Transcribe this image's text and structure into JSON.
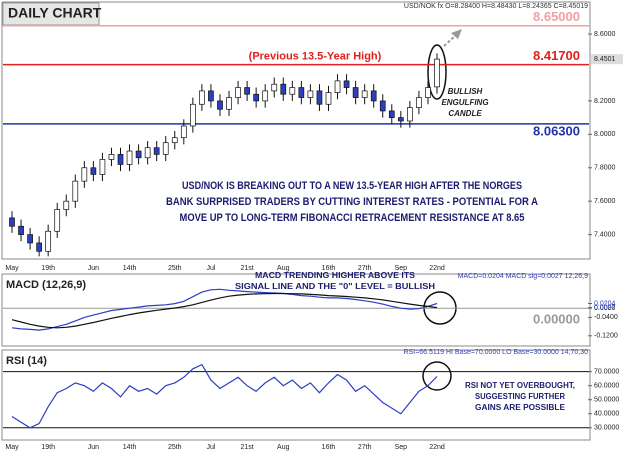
{
  "chart_data": [
    {
      "type": "candlestick",
      "title": "DAILY CHART",
      "header": "USD/NOK fx O=8.28400 H=8.48430 L=8.24365 C=8.45019",
      "categories": [
        "May",
        null,
        null,
        null,
        "19th",
        null,
        null,
        null,
        null,
        "Jun",
        null,
        null,
        null,
        "14th",
        null,
        null,
        null,
        null,
        "25th",
        null,
        null,
        null,
        "Jul",
        null,
        null,
        null,
        "21st",
        null,
        null,
        null,
        "Aug",
        null,
        null,
        null,
        null,
        "16th",
        null,
        null,
        null,
        "27th",
        null,
        null,
        null,
        "Sep",
        null,
        null,
        null,
        "22nd"
      ],
      "open": [
        7.5,
        7.45,
        7.4,
        7.35,
        7.3,
        7.42,
        7.55,
        7.6,
        7.72,
        7.8,
        7.76,
        7.85,
        7.88,
        7.82,
        7.9,
        7.86,
        7.92,
        7.88,
        7.95,
        7.98,
        8.05,
        8.18,
        8.26,
        8.2,
        8.15,
        8.22,
        8.28,
        8.24,
        8.2,
        8.26,
        8.3,
        8.24,
        8.28,
        8.22,
        8.26,
        8.18,
        8.25,
        8.32,
        8.28,
        8.22,
        8.26,
        8.2,
        8.14,
        8.1,
        8.08,
        8.16,
        8.22,
        8.284
      ],
      "high": [
        7.54,
        7.49,
        7.44,
        7.39,
        7.46,
        7.59,
        7.64,
        7.76,
        7.84,
        7.84,
        7.89,
        7.92,
        7.92,
        7.94,
        7.94,
        7.96,
        7.96,
        7.99,
        8.02,
        8.09,
        8.22,
        8.3,
        8.3,
        8.24,
        8.26,
        8.32,
        8.32,
        8.28,
        8.3,
        8.34,
        8.34,
        8.32,
        8.32,
        8.3,
        8.3,
        8.29,
        8.36,
        8.36,
        8.32,
        8.3,
        8.3,
        8.24,
        8.18,
        8.14,
        8.2,
        8.26,
        8.32,
        8.4843
      ],
      "low": [
        7.41,
        7.36,
        7.31,
        7.27,
        7.27,
        7.38,
        7.51,
        7.56,
        7.68,
        7.72,
        7.72,
        7.81,
        7.78,
        7.78,
        7.82,
        7.82,
        7.84,
        7.84,
        7.91,
        7.94,
        8.01,
        8.14,
        8.16,
        8.11,
        8.11,
        8.18,
        8.2,
        8.16,
        8.16,
        8.22,
        8.2,
        8.2,
        8.18,
        8.18,
        8.14,
        8.14,
        8.21,
        8.24,
        8.18,
        8.18,
        8.16,
        8.1,
        8.06,
        8.04,
        8.04,
        8.12,
        8.18,
        8.24365
      ],
      "close": [
        7.45,
        7.4,
        7.35,
        7.3,
        7.42,
        7.55,
        7.6,
        7.72,
        7.8,
        7.76,
        7.85,
        7.88,
        7.82,
        7.9,
        7.86,
        7.92,
        7.88,
        7.95,
        7.98,
        8.05,
        8.18,
        8.26,
        8.2,
        8.15,
        8.22,
        8.28,
        8.24,
        8.2,
        8.26,
        8.3,
        8.24,
        8.28,
        8.22,
        8.26,
        8.18,
        8.25,
        8.32,
        8.28,
        8.22,
        8.26,
        8.2,
        8.14,
        8.1,
        8.08,
        8.16,
        8.22,
        8.28,
        8.45019
      ],
      "up_color": "#ffffff",
      "down_color": "#2b3fc0",
      "ylim": [
        7.26,
        8.78
      ],
      "yticks": [
        {
          "value": 7.4,
          "label": "7.4000"
        },
        {
          "value": 7.6,
          "label": "7.6000"
        },
        {
          "value": 7.8,
          "label": "7.8000"
        },
        {
          "value": 8.0,
          "label": "8.0000"
        },
        {
          "value": 8.2,
          "label": "8.2000"
        },
        {
          "value": 8.6,
          "label": "8.6000"
        }
      ],
      "last_price": 8.4501,
      "levels": [
        {
          "value": 8.65,
          "label": "8.65000",
          "color": "#f2a0a0"
        },
        {
          "value": 8.417,
          "label": "8.41700",
          "color": "#e0201c"
        },
        {
          "value": 8.063,
          "label": "8.06300",
          "color": "#2233aa"
        }
      ],
      "level_note": "(Previous 13.5-Year High)",
      "candle_note": [
        "BULLISH",
        "ENGULFING",
        "CANDLE"
      ],
      "note": [
        "USD/NOK IS BREAKING OUT TO A NEW 13.5-YEAR HIGH AFTER THE NORGES",
        "BANK SURPRISED TRADERS BY CUTTING INTEREST RATES - POTENTIAL FOR A",
        "MOVE UP TO LONG-TERM FIBONACCI RETRACEMENT RESISTANCE AT 8.65"
      ]
    },
    {
      "type": "line",
      "title": "MACD (12,26,9)",
      "header": "MACD=0.0204 MACD sig=0.0027  12,26,9",
      "series": [
        {
          "name": "MACD",
          "color": "#2b3fc0",
          "values": [
            -0.085,
            -0.09,
            -0.092,
            -0.095,
            -0.09,
            -0.08,
            -0.07,
            -0.055,
            -0.04,
            -0.03,
            -0.02,
            -0.01,
            -0.005,
            0.0,
            0.005,
            0.01,
            0.012,
            0.015,
            0.02,
            0.03,
            0.05,
            0.07,
            0.08,
            0.082,
            0.078,
            0.075,
            0.072,
            0.07,
            0.068,
            0.066,
            0.064,
            0.06,
            0.055,
            0.052,
            0.048,
            0.045,
            0.045,
            0.042,
            0.038,
            0.032,
            0.026,
            0.018,
            0.008,
            0.0,
            -0.004,
            -0.002,
            0.008,
            0.0204
          ]
        },
        {
          "name": "MACD sig",
          "color": "#111111",
          "values": [
            -0.05,
            -0.06,
            -0.07,
            -0.078,
            -0.083,
            -0.085,
            -0.083,
            -0.078,
            -0.07,
            -0.062,
            -0.053,
            -0.044,
            -0.036,
            -0.028,
            -0.021,
            -0.015,
            -0.009,
            -0.004,
            0.001,
            0.007,
            0.015,
            0.025,
            0.035,
            0.045,
            0.052,
            0.057,
            0.06,
            0.062,
            0.063,
            0.064,
            0.064,
            0.063,
            0.062,
            0.06,
            0.058,
            0.055,
            0.053,
            0.051,
            0.048,
            0.045,
            0.041,
            0.036,
            0.03,
            0.024,
            0.018,
            0.012,
            0.008,
            0.0027
          ]
        }
      ],
      "ylim": [
        -0.16,
        0.14
      ],
      "yticks": [
        {
          "value": -0.12,
          "label": "-0.1200"
        },
        {
          "value": -0.04,
          "label": "-0.0400"
        },
        {
          "value": 0,
          "label": "0.0000"
        },
        0.0027,
        0.0204
      ],
      "levels": [
        {
          "value": 0,
          "label": "0.00000",
          "color": "#999999"
        }
      ],
      "note": [
        "MACD TRENDING HIGHER ABOVE ITS",
        "SIGNAL LINE AND THE \"0\" LEVEL = BULLISH"
      ]
    },
    {
      "type": "line",
      "title": "RSI (14)",
      "header": "RSI=66.5119 HI Base=70.0000 LO Base=30.0000  14,70,30",
      "series": [
        {
          "name": "RSI",
          "color": "#2b3fc0",
          "values": [
            38,
            34,
            30,
            33,
            45,
            55,
            58,
            62,
            60,
            56,
            62,
            58,
            52,
            60,
            56,
            58,
            54,
            60,
            62,
            66,
            72,
            75,
            64,
            58,
            62,
            66,
            60,
            56,
            62,
            66,
            60,
            64,
            58,
            62,
            55,
            62,
            68,
            64,
            56,
            60,
            54,
            48,
            44,
            40,
            48,
            56,
            60,
            66.5119
          ]
        }
      ],
      "ylim": [
        22,
        84
      ],
      "yticks": [
        {
          "value": 30,
          "label": "30.0000"
        },
        {
          "value": 40,
          "label": "40.0000"
        },
        {
          "value": 50,
          "label": "50.0000"
        },
        {
          "value": 60,
          "label": "60.0000"
        },
        {
          "value": 70,
          "label": "70.0000"
        }
      ],
      "levels": [
        {
          "value": 70,
          "color": "#111111"
        },
        {
          "value": 30,
          "color": "#111111"
        }
      ],
      "note": [
        "RSI NOT YET OVERBOUGHT,",
        "SUGGESTING FURTHER",
        "GAINS ARE POSSIBLE"
      ]
    }
  ]
}
